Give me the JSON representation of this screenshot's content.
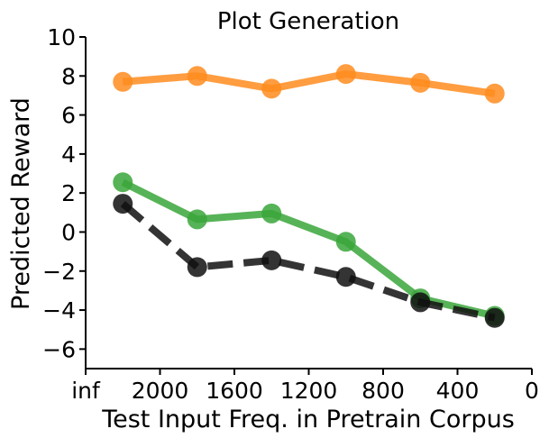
{
  "chart_data": {
    "type": "line",
    "title": "Plot Generation",
    "xlabel": "Test Input Freq. in Pretrain Corpus",
    "ylabel": "Predicted Reward",
    "x_axis_reversed": true,
    "xlim": [
      2400,
      0
    ],
    "ylim": [
      -7,
      10
    ],
    "x_ticks": [
      2400,
      2000,
      1600,
      1200,
      800,
      400,
      0
    ],
    "x_tick_labels": [
      "inf",
      "2000",
      "1600",
      "1200",
      "800",
      "400",
      "0"
    ],
    "y_ticks": [
      -6,
      -4,
      -2,
      0,
      2,
      4,
      6,
      8,
      10
    ],
    "y_tick_labels": [
      "−6",
      "−4",
      "−2",
      "0",
      "2",
      "4",
      "6",
      "8",
      "10"
    ],
    "grid": false,
    "legend": false,
    "x": [
      2200,
      1800,
      1400,
      1000,
      600,
      200
    ],
    "series": [
      {
        "color": "#ff8c1f",
        "dash": false,
        "values": [
          7.7,
          8.0,
          7.35,
          8.1,
          7.65,
          7.1
        ]
      },
      {
        "color": "#3aa63a",
        "dash": false,
        "values": [
          2.55,
          0.65,
          0.95,
          -0.5,
          -3.4,
          -4.3
        ]
      },
      {
        "color": "#111111",
        "dash": true,
        "values": [
          1.45,
          -1.8,
          -1.45,
          -2.3,
          -3.6,
          -4.4
        ]
      }
    ]
  }
}
